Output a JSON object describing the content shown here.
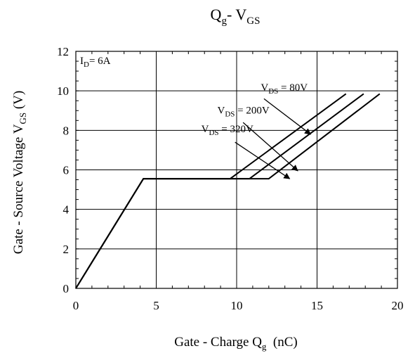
{
  "chart_data": {
    "type": "line",
    "title": {
      "main": "Q",
      "sub1": "g",
      "mid": "- V",
      "sub2": "GS"
    },
    "xlabel": {
      "pre": "Gate - Charge Q",
      "sub": "g",
      "post": "  (nC)"
    },
    "ylabel": {
      "pre": "Gate - Source Voltage V",
      "sub": "GS",
      "post": "   (V)"
    },
    "xlim": [
      0,
      20
    ],
    "ylim": [
      0,
      12
    ],
    "xticks": [
      0,
      5,
      10,
      15,
      20
    ],
    "yticks": [
      0,
      2,
      4,
      6,
      8,
      10,
      12
    ],
    "grid": true,
    "condition": {
      "pre": "I",
      "sub": "D",
      "post": "= 6A"
    },
    "series": [
      {
        "label": {
          "pre": "V",
          "sub": "DS",
          "post": " = 80V"
        },
        "points": [
          [
            0,
            0
          ],
          [
            4.2,
            5.55
          ],
          [
            9.6,
            5.55
          ],
          [
            16.8,
            9.85
          ]
        ]
      },
      {
        "label": {
          "pre": "V",
          "sub": "DS",
          "post": " = 200V"
        },
        "points": [
          [
            0,
            0
          ],
          [
            4.2,
            5.55
          ],
          [
            10.8,
            5.55
          ],
          [
            17.9,
            9.85
          ]
        ]
      },
      {
        "label": {
          "pre": "V",
          "sub": "DS",
          "post": " = 320V"
        },
        "points": [
          [
            0,
            0
          ],
          [
            4.2,
            5.55
          ],
          [
            12.0,
            5.55
          ],
          [
            18.9,
            9.85
          ]
        ]
      }
    ],
    "annotations": [
      {
        "series": 0,
        "text_at": [
          11.5,
          10.0
        ],
        "arrow_from": [
          11.7,
          9.6
        ],
        "arrow_to": [
          14.6,
          7.8
        ]
      },
      {
        "series": 1,
        "text_at": [
          8.8,
          8.85
        ],
        "arrow_from": [
          10.4,
          8.4
        ],
        "arrow_to": [
          13.8,
          5.95
        ]
      },
      {
        "series": 2,
        "text_at": [
          7.8,
          7.9
        ],
        "arrow_from": [
          9.9,
          7.4
        ],
        "arrow_to": [
          13.3,
          5.55
        ]
      }
    ]
  }
}
